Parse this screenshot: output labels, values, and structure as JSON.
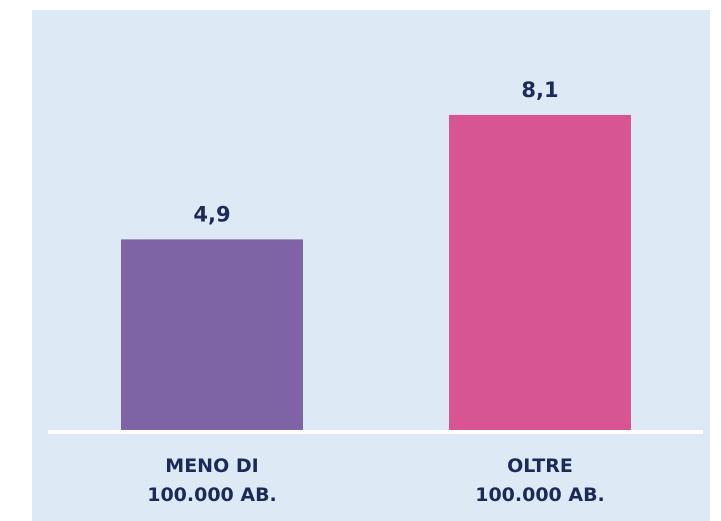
{
  "chart_data": {
    "type": "bar",
    "categories": [
      "MENO DI\n100.000 AB.",
      "OLTRE\n100.000 AB."
    ],
    "values": [
      4.9,
      8.1
    ],
    "value_labels": [
      "4,9",
      "8,1"
    ],
    "colors": [
      "#7e63a5",
      "#d65592"
    ],
    "ylim": [
      0,
      10
    ]
  }
}
